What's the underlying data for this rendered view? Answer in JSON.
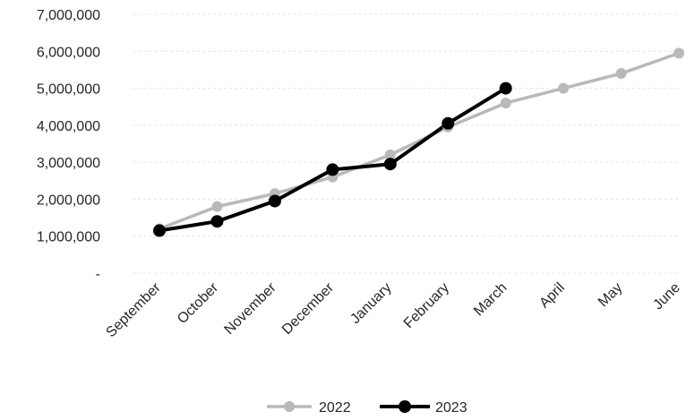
{
  "chart_data": {
    "type": "line",
    "title": "",
    "xlabel": "",
    "ylabel": "",
    "categories": [
      "September",
      "October",
      "November",
      "December",
      "January",
      "February",
      "March",
      "April",
      "May",
      "June"
    ],
    "y_ticks": [
      "-",
      "1,000,000",
      "2,000,000",
      "3,000,000",
      "4,000,000",
      "5,000,000",
      "6,000,000",
      "7,000,000"
    ],
    "ylim": [
      0,
      7000000
    ],
    "grid": true,
    "legend_position": "bottom",
    "series": [
      {
        "name": "2022",
        "color": "#b9b9b9",
        "values": [
          1200000,
          1800000,
          2150000,
          2600000,
          3200000,
          3950000,
          4600000,
          5000000,
          5400000,
          5950000
        ]
      },
      {
        "name": "2023",
        "color": "#000000",
        "values": [
          1150000,
          1400000,
          1950000,
          2800000,
          2950000,
          4050000,
          5000000,
          null,
          null,
          null
        ]
      }
    ]
  }
}
